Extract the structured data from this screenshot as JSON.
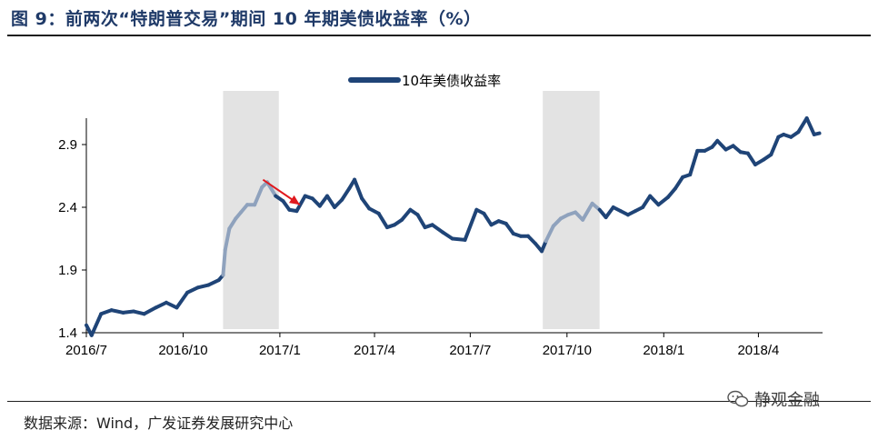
{
  "header": {
    "title": "图 9：前两次“特朗普交易”期间 10 年期美债收益率（%）"
  },
  "footer": {
    "source": "数据来源：Wind，广发证券发展研究中心",
    "watermark": "静观金融"
  },
  "colors": {
    "series": "#1f4477",
    "series_light": "#8fa2bd",
    "shade": "#e3e3e3",
    "arrow": "#e0191e",
    "title": "#1f3a68"
  },
  "chart_data": {
    "type": "line",
    "title": "",
    "xlabel": "",
    "ylabel": "",
    "ylim": [
      1.4,
      3.4
    ],
    "yticks": [
      "1.4",
      "1.9",
      "2.4",
      "2.9"
    ],
    "xticks": [
      "2016/7",
      "2016/10",
      "2017/1",
      "2017/4",
      "2017/7",
      "2017/10",
      "2018/1",
      "2018/4"
    ],
    "legend": "top-center",
    "grid": false,
    "series": [
      {
        "name": "10年美债收益率",
        "x": [
          "2016-07-01",
          "2016-07-06",
          "2016-07-15",
          "2016-07-25",
          "2016-08-05",
          "2016-08-15",
          "2016-08-25",
          "2016-09-05",
          "2016-09-15",
          "2016-09-25",
          "2016-10-05",
          "2016-10-15",
          "2016-10-25",
          "2016-11-04",
          "2016-11-08",
          "2016-11-10",
          "2016-11-14",
          "2016-11-20",
          "2016-11-25",
          "2016-12-01",
          "2016-12-08",
          "2016-12-15",
          "2016-12-20",
          "2016-12-28",
          "2017-01-04",
          "2017-01-10",
          "2017-01-17",
          "2017-01-25",
          "2017-02-01",
          "2017-02-08",
          "2017-02-15",
          "2017-02-22",
          "2017-03-01",
          "2017-03-08",
          "2017-03-13",
          "2017-03-20",
          "2017-03-27",
          "2017-04-05",
          "2017-04-13",
          "2017-04-20",
          "2017-04-27",
          "2017-05-05",
          "2017-05-12",
          "2017-05-19",
          "2017-05-26",
          "2017-06-05",
          "2017-06-14",
          "2017-06-26",
          "2017-07-07",
          "2017-07-14",
          "2017-07-21",
          "2017-07-28",
          "2017-08-04",
          "2017-08-11",
          "2017-08-18",
          "2017-08-25",
          "2017-09-01",
          "2017-09-07",
          "2017-09-11",
          "2017-09-18",
          "2017-09-25",
          "2017-10-02",
          "2017-10-09",
          "2017-10-16",
          "2017-10-25",
          "2017-11-01",
          "2017-11-07",
          "2017-11-14",
          "2017-11-21",
          "2017-11-28",
          "2017-12-05",
          "2017-12-12",
          "2017-12-19",
          "2017-12-27",
          "2018-01-05",
          "2018-01-12",
          "2018-01-19",
          "2018-01-26",
          "2018-02-02",
          "2018-02-09",
          "2018-02-16",
          "2018-02-21",
          "2018-03-01",
          "2018-03-08",
          "2018-03-15",
          "2018-03-22",
          "2018-03-29",
          "2018-04-06",
          "2018-04-13",
          "2018-04-20",
          "2018-04-25",
          "2018-05-02",
          "2018-05-09",
          "2018-05-17",
          "2018-05-24",
          "2018-05-29"
        ],
        "y": [
          1.46,
          1.38,
          1.55,
          1.58,
          1.56,
          1.57,
          1.55,
          1.6,
          1.64,
          1.6,
          1.72,
          1.76,
          1.78,
          1.82,
          1.86,
          2.06,
          2.23,
          2.31,
          2.36,
          2.42,
          2.42,
          2.56,
          2.6,
          2.49,
          2.45,
          2.38,
          2.37,
          2.49,
          2.47,
          2.41,
          2.49,
          2.4,
          2.46,
          2.55,
          2.62,
          2.47,
          2.39,
          2.35,
          2.24,
          2.26,
          2.3,
          2.38,
          2.34,
          2.24,
          2.26,
          2.2,
          2.15,
          2.14,
          2.38,
          2.35,
          2.26,
          2.29,
          2.27,
          2.19,
          2.17,
          2.17,
          2.11,
          2.05,
          2.13,
          2.25,
          2.31,
          2.34,
          2.36,
          2.3,
          2.43,
          2.38,
          2.32,
          2.4,
          2.37,
          2.34,
          2.37,
          2.4,
          2.49,
          2.42,
          2.48,
          2.55,
          2.64,
          2.66,
          2.85,
          2.85,
          2.88,
          2.93,
          2.86,
          2.89,
          2.84,
          2.83,
          2.74,
          2.78,
          2.82,
          2.96,
          2.98,
          2.96,
          3.0,
          3.11,
          2.98,
          2.99
        ]
      }
    ],
    "shaded_periods": [
      [
        "2016-11-08",
        "2016-12-31"
      ],
      [
        "2017-09-08",
        "2017-11-01"
      ]
    ],
    "arrow": {
      "from": [
        "2016-12-16",
        2.62
      ],
      "to": [
        "2017-01-20",
        2.42
      ]
    }
  }
}
